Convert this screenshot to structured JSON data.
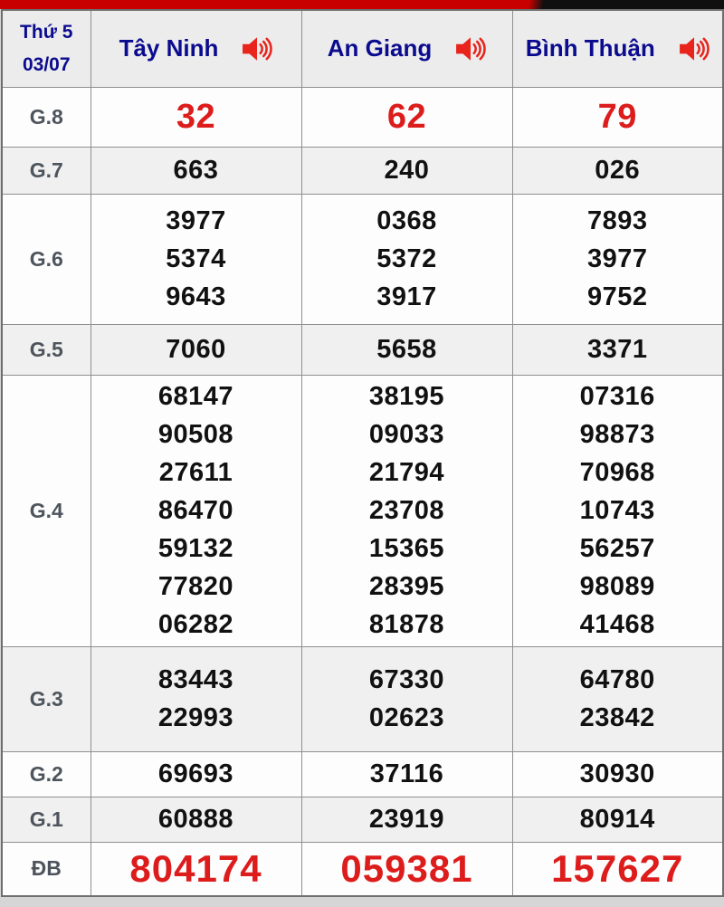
{
  "page": {
    "accent_bar_red": "#c80000",
    "accent_bar_black": "#101010"
  },
  "colors": {
    "header_text_navy": "#0b0b8f",
    "prize_label_gray": "#4d545c",
    "number_black": "#111111",
    "number_red": "#dd1c1c",
    "header_bg": "#ececec",
    "row_shade_bg": "#f0f0f0"
  },
  "table": {
    "date": {
      "day": "Thứ 5",
      "date": "03/07"
    },
    "columns": [
      {
        "label": "Tây Ninh",
        "icon": "speaker-audio-icon"
      },
      {
        "label": "An Giang",
        "icon": "speaker-audio-icon"
      },
      {
        "label": "Bình Thuận",
        "icon": "speaker-audio-icon"
      }
    ],
    "rows": [
      {
        "id": "g8",
        "label": "G.8",
        "values": [
          [
            "32"
          ],
          [
            "62"
          ],
          [
            "79"
          ]
        ]
      },
      {
        "id": "g7",
        "label": "G.7",
        "values": [
          [
            "663"
          ],
          [
            "240"
          ],
          [
            "026"
          ]
        ]
      },
      {
        "id": "g6",
        "label": "G.6",
        "values": [
          [
            "3977",
            "5374",
            "9643"
          ],
          [
            "0368",
            "5372",
            "3917"
          ],
          [
            "7893",
            "3977",
            "9752"
          ]
        ]
      },
      {
        "id": "g5",
        "label": "G.5",
        "values": [
          [
            "7060"
          ],
          [
            "5658"
          ],
          [
            "3371"
          ]
        ]
      },
      {
        "id": "g4",
        "label": "G.4",
        "values": [
          [
            "68147",
            "90508",
            "27611",
            "86470",
            "59132",
            "77820",
            "06282"
          ],
          [
            "38195",
            "09033",
            "21794",
            "23708",
            "15365",
            "28395",
            "81878"
          ],
          [
            "07316",
            "98873",
            "70968",
            "10743",
            "56257",
            "98089",
            "41468"
          ]
        ]
      },
      {
        "id": "g3",
        "label": "G.3",
        "values": [
          [
            "83443",
            "22993"
          ],
          [
            "67330",
            "02623"
          ],
          [
            "64780",
            "23842"
          ]
        ]
      },
      {
        "id": "g2",
        "label": "G.2",
        "values": [
          [
            "69693"
          ],
          [
            "37116"
          ],
          [
            "30930"
          ]
        ]
      },
      {
        "id": "g1",
        "label": "G.1",
        "values": [
          [
            "60888"
          ],
          [
            "23919"
          ],
          [
            "80914"
          ]
        ]
      },
      {
        "id": "db",
        "label": "ĐB",
        "values": [
          [
            "804174"
          ],
          [
            "059381"
          ],
          [
            "157627"
          ]
        ]
      }
    ]
  }
}
